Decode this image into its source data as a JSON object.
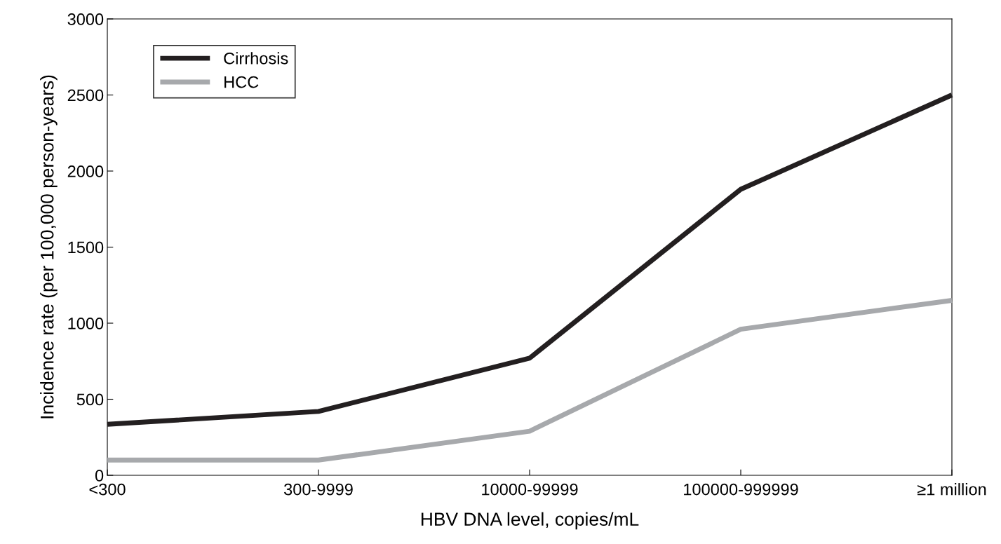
{
  "chart_data": {
    "type": "line",
    "xlabel": "HBV DNA level, copies/mL",
    "ylabel": "Incidence rate (per 100,000 person-years)",
    "categories": [
      "<300",
      "300-9999",
      "10000-99999",
      "100000-999999",
      "≥1 million"
    ],
    "series": [
      {
        "name": "Cirrhosis",
        "color": "#231f20",
        "values": [
          335,
          420,
          770,
          1880,
          2500
        ]
      },
      {
        "name": "HCC",
        "color": "#a7a9ac",
        "values": [
          100,
          100,
          290,
          960,
          1150
        ]
      }
    ],
    "ylim": [
      0,
      3000
    ],
    "yticks": [
      0,
      500,
      1000,
      1500,
      2000,
      2500,
      3000
    ],
    "grid": false,
    "legend": "top left",
    "marker": "none",
    "line_style": "solid"
  }
}
